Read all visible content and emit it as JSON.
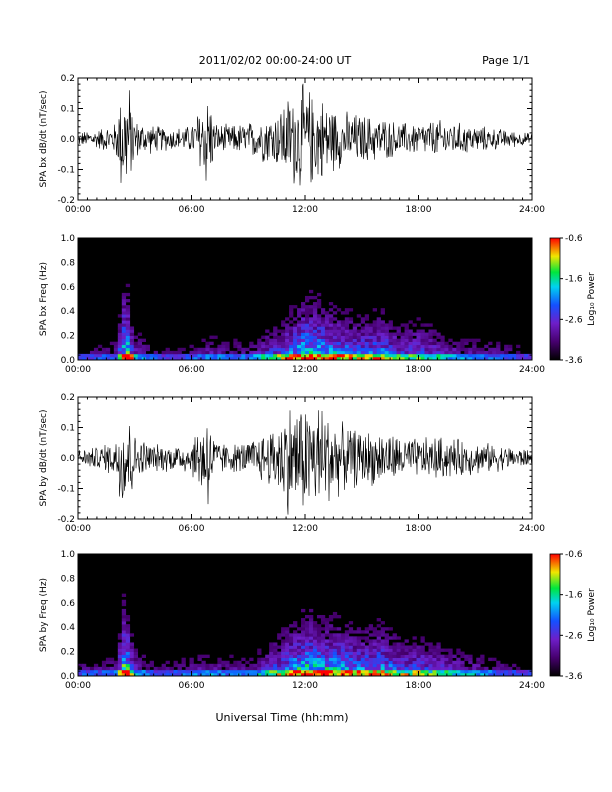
{
  "header": {
    "title": "2011/02/02  00:00-24:00 UT",
    "page": "Page 1/1"
  },
  "xaxis_label": "Universal Time (hh:mm)",
  "colorbar": {
    "label": "Log₁₀ Power",
    "ticks": [
      "-0.6",
      "-1.6",
      "-2.6",
      "-3.6"
    ],
    "range": [
      -3.6,
      -0.6
    ]
  },
  "chart_data": [
    {
      "type": "line",
      "ylabel": "SPA bx dB/dt (nT/sec)",
      "xticks": [
        "00:00",
        "06:00",
        "12:00",
        "18:00",
        "24:00"
      ],
      "xlim": [
        0,
        24
      ],
      "ylim": [
        -0.2,
        0.2
      ],
      "yticks": [
        "-0.2",
        "-0.1",
        "0.0",
        "0.1",
        "0.2"
      ],
      "envelope": {
        "x": [
          0,
          1,
          2,
          2.3,
          2.7,
          3,
          4,
          5,
          6,
          6.9,
          7.2,
          8,
          9,
          10,
          10.5,
          11,
          11.5,
          12,
          12.5,
          13,
          13.5,
          14,
          15,
          16,
          17,
          18,
          19,
          20,
          21,
          22,
          23,
          24
        ],
        "amplitude": [
          0.025,
          0.035,
          0.06,
          0.2,
          0.2,
          0.07,
          0.05,
          0.04,
          0.05,
          0.2,
          0.06,
          0.05,
          0.06,
          0.09,
          0.1,
          0.15,
          0.18,
          0.2,
          0.16,
          0.15,
          0.12,
          0.1,
          0.09,
          0.08,
          0.06,
          0.06,
          0.07,
          0.06,
          0.05,
          0.04,
          0.03,
          0.02
        ]
      }
    },
    {
      "type": "heatmap",
      "ylabel": "SPA bx Freq (Hz)",
      "xticks": [
        "00:00",
        "06:00",
        "12:00",
        "18:00",
        "24:00"
      ],
      "xlim": [
        0,
        24
      ],
      "ylim": [
        0,
        1
      ],
      "yticks": [
        "0.0",
        "0.2",
        "0.4",
        "0.6",
        "0.8",
        "1.0"
      ],
      "zlim": [
        -3.6,
        -0.6
      ],
      "activity": {
        "x": [
          0,
          2,
          2.5,
          3,
          4,
          5,
          6,
          7,
          8,
          9,
          10,
          11,
          12,
          13,
          14,
          15,
          16,
          17,
          18,
          19,
          20,
          21,
          22,
          23,
          24
        ],
        "level": [
          0.2,
          0.3,
          0.95,
          0.4,
          0.25,
          0.2,
          0.25,
          0.35,
          0.3,
          0.3,
          0.45,
          0.6,
          0.8,
          0.75,
          0.65,
          0.6,
          0.65,
          0.5,
          0.55,
          0.45,
          0.35,
          0.3,
          0.3,
          0.25,
          0.2
        ]
      }
    },
    {
      "type": "line",
      "ylabel": "SPA by dB/dt (nT/sec)",
      "xticks": [
        "00:00",
        "06:00",
        "12:00",
        "18:00",
        "24:00"
      ],
      "xlim": [
        0,
        24
      ],
      "ylim": [
        -0.2,
        0.2
      ],
      "yticks": [
        "-0.2",
        "-0.1",
        "0.0",
        "0.1",
        "0.2"
      ],
      "envelope": {
        "x": [
          0,
          1,
          2,
          2.3,
          2.7,
          3,
          4,
          5,
          6,
          6.9,
          7.2,
          8,
          9,
          10,
          10.5,
          11,
          11.5,
          12,
          12.5,
          13,
          13.5,
          14,
          15,
          16,
          17,
          18,
          19,
          20,
          21,
          22,
          23,
          24
        ],
        "amplitude": [
          0.03,
          0.04,
          0.07,
          0.2,
          0.2,
          0.08,
          0.05,
          0.05,
          0.06,
          0.2,
          0.07,
          0.05,
          0.06,
          0.1,
          0.12,
          0.2,
          0.2,
          0.2,
          0.2,
          0.2,
          0.15,
          0.12,
          0.1,
          0.1,
          0.08,
          0.07,
          0.08,
          0.07,
          0.06,
          0.05,
          0.04,
          0.03
        ]
      }
    },
    {
      "type": "heatmap",
      "ylabel": "SPA by Freq (Hz)",
      "xticks": [
        "00:00",
        "06:00",
        "12:00",
        "18:00",
        "24:00"
      ],
      "xlim": [
        0,
        24
      ],
      "ylim": [
        0,
        1
      ],
      "yticks": [
        "0.0",
        "0.2",
        "0.4",
        "0.6",
        "0.8",
        "1.0"
      ],
      "zlim": [
        -3.6,
        -0.6
      ],
      "activity": {
        "x": [
          0,
          2,
          2.5,
          3,
          4,
          5,
          6,
          7,
          8,
          9,
          10,
          11,
          12,
          13,
          14,
          15,
          16,
          17,
          18,
          19,
          20,
          21,
          22,
          23,
          24
        ],
        "level": [
          0.25,
          0.3,
          0.95,
          0.4,
          0.25,
          0.25,
          0.3,
          0.35,
          0.3,
          0.3,
          0.45,
          0.65,
          0.8,
          0.75,
          0.7,
          0.65,
          0.7,
          0.55,
          0.55,
          0.5,
          0.4,
          0.35,
          0.3,
          0.25,
          0.2
        ]
      }
    }
  ]
}
